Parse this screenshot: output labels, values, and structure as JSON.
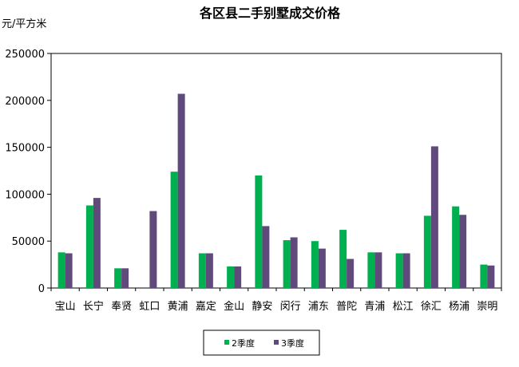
{
  "chart_data": {
    "type": "bar",
    "title": "各区县二手别墅成交价格",
    "ylabel": "元/平方米",
    "xlabel": "",
    "ylim": [
      0,
      250000
    ],
    "yticks": [
      0,
      50000,
      100000,
      150000,
      200000,
      250000
    ],
    "ytick_labels": [
      "0",
      "50000",
      "100000",
      "150000",
      "200000",
      "250000"
    ],
    "grid": false,
    "legend_position": "bottom",
    "categories": [
      "宝山",
      "长宁",
      "奉贤",
      "虹口",
      "黄浦",
      "嘉定",
      "金山",
      "静安",
      "闵行",
      "浦东",
      "普陀",
      "青浦",
      "松江",
      "徐汇",
      "杨浦",
      "崇明"
    ],
    "series": [
      {
        "name": "2季度",
        "color": "#00b050",
        "values": [
          38000,
          88000,
          21000,
          null,
          124000,
          37000,
          23000,
          120000,
          51000,
          50000,
          62000,
          38000,
          37000,
          77000,
          87000,
          25000
        ]
      },
      {
        "name": "3季度",
        "color": "#604a7b",
        "values": [
          37000,
          96000,
          21000,
          82000,
          207000,
          37000,
          23000,
          66000,
          54000,
          42000,
          31000,
          38000,
          37000,
          151000,
          78000,
          24000
        ]
      }
    ]
  }
}
